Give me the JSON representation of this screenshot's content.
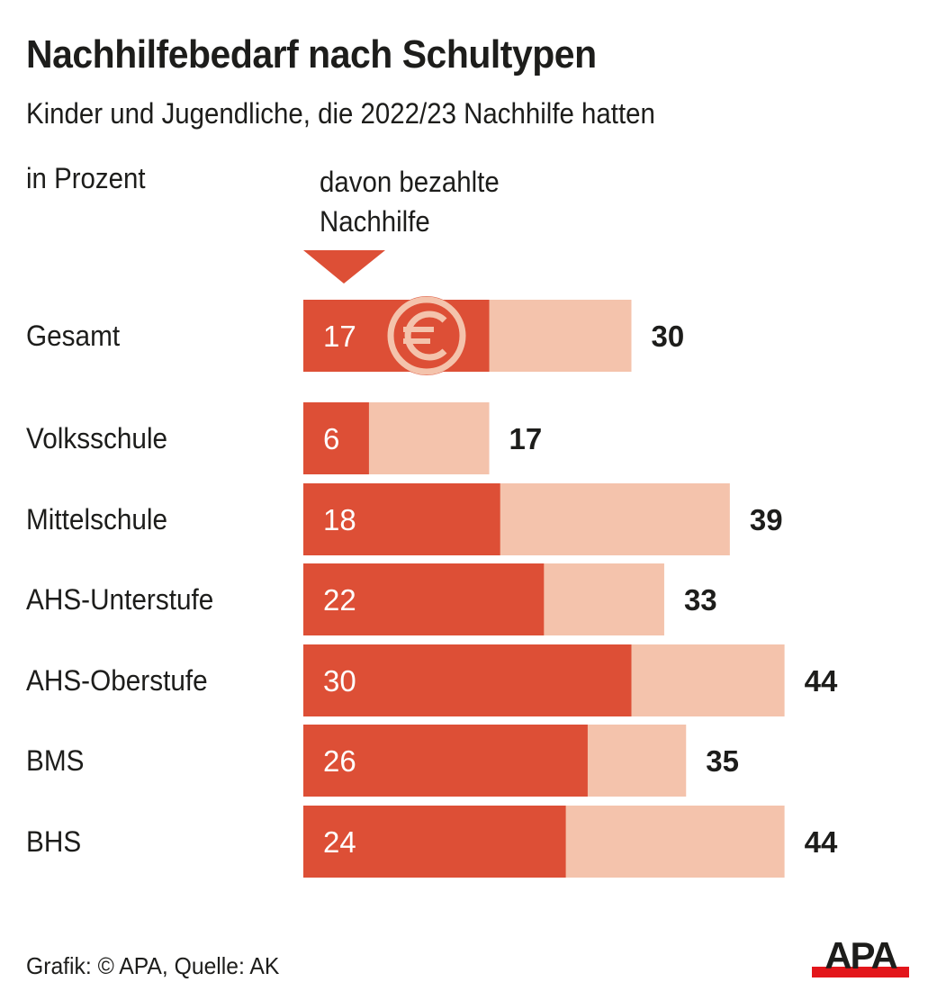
{
  "header": {
    "title": "Nachhilfebedarf nach Schultypen",
    "subtitle": "Kinder und Jugendliche, die 2022/23 Nachhilfe hatten",
    "unit_label": "in Prozent",
    "paid_label_line1": "davon bezahlte",
    "paid_label_line2": "Nachhilfe"
  },
  "footer": {
    "credit": "Grafik: © APA, Quelle: AK",
    "logo_text": "APA"
  },
  "colors": {
    "paid": "#dd4f36",
    "total": "#f4c3ac",
    "logo_red": "#e3161b",
    "text": "#1d1d1b"
  },
  "icons": {
    "marker": "triangle-down-icon",
    "currency": "euro-icon"
  },
  "chart_data": {
    "type": "bar",
    "orientation": "horizontal",
    "title": "Nachhilfebedarf nach Schultypen",
    "subtitle": "Kinder und Jugendliche, die 2022/23 Nachhilfe hatten",
    "xlabel": "in Prozent",
    "ylabel": "",
    "xlim": [
      0,
      50
    ],
    "grid": false,
    "categories": [
      "Gesamt",
      "Volksschule",
      "Mittelschule",
      "AHS-Unterstufe",
      "AHS-Oberstufe",
      "BMS",
      "BHS"
    ],
    "series": [
      {
        "name": "Nachhilfe gesamt",
        "values": [
          30,
          17,
          39,
          33,
          44,
          35,
          44
        ]
      },
      {
        "name": "davon bezahlte Nachhilfe",
        "values": [
          17,
          6,
          18,
          22,
          30,
          26,
          24
        ]
      }
    ],
    "legend": "top (label above paid bars)"
  }
}
